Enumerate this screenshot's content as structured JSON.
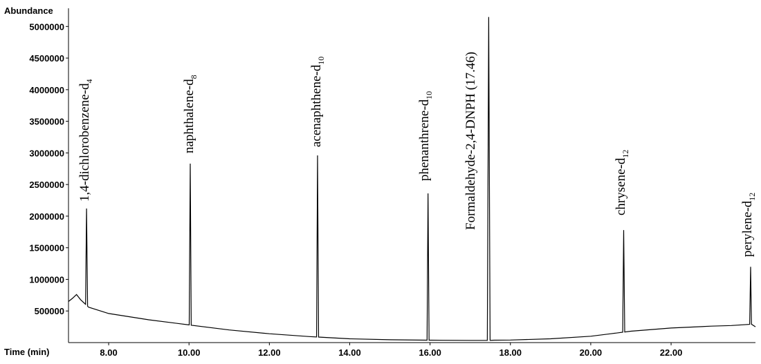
{
  "chart_data": {
    "type": "line",
    "ylabel": "Abundance",
    "xlabel": "Time (min)",
    "xlim": [
      7.0,
      24.1
    ],
    "ylim": [
      0,
      5200000
    ],
    "x_ticks": [
      {
        "value": 8,
        "label": "8.00"
      },
      {
        "value": 10,
        "label": "10.00"
      },
      {
        "value": 12,
        "label": "12.00"
      },
      {
        "value": 14,
        "label": "14.00"
      },
      {
        "value": 16,
        "label": "16.00"
      },
      {
        "value": 18,
        "label": "18.00"
      },
      {
        "value": 20,
        "label": "20.00"
      },
      {
        "value": 22,
        "label": "22.00"
      }
    ],
    "y_ticks": [
      {
        "value": 500000,
        "label": "500000"
      },
      {
        "value": 1000000,
        "label": "1000000"
      },
      {
        "value": 1500000,
        "label": "1500000"
      },
      {
        "value": 2000000,
        "label": "2000000"
      },
      {
        "value": 2500000,
        "label": "2500000"
      },
      {
        "value": 3000000,
        "label": "3000000"
      },
      {
        "value": 3500000,
        "label": "3500000"
      },
      {
        "value": 4000000,
        "label": "4000000"
      },
      {
        "value": 4500000,
        "label": "4500000"
      },
      {
        "value": 5000000,
        "label": "5000000"
      }
    ],
    "baseline": [
      [
        7.0,
        650000
      ],
      [
        7.1,
        700000
      ],
      [
        7.2,
        760000
      ],
      [
        7.3,
        680000
      ],
      [
        7.5,
        560000
      ],
      [
        8.0,
        460000
      ],
      [
        9.0,
        360000
      ],
      [
        10.0,
        280000
      ],
      [
        11.0,
        200000
      ],
      [
        12.0,
        140000
      ],
      [
        13.0,
        95000
      ],
      [
        14.0,
        60000
      ],
      [
        15.0,
        45000
      ],
      [
        16.0,
        38000
      ],
      [
        17.0,
        35000
      ],
      [
        17.4,
        35000
      ],
      [
        17.6,
        38000
      ],
      [
        18.0,
        40000
      ],
      [
        19.0,
        60000
      ],
      [
        20.0,
        100000
      ],
      [
        20.5,
        140000
      ],
      [
        21.0,
        180000
      ],
      [
        22.0,
        230000
      ],
      [
        23.0,
        260000
      ],
      [
        23.5,
        270000
      ],
      [
        24.0,
        290000
      ],
      [
        24.1,
        250000
      ]
    ],
    "peaks": [
      {
        "name": "1,4-dichlorobenzene-d",
        "subscript": "4",
        "rt": 7.45,
        "height": 2120000
      },
      {
        "name": "naphthalene-d",
        "subscript": "8",
        "rt": 10.03,
        "height": 2830000
      },
      {
        "name": "acenaphthene-d",
        "subscript": "10",
        "rt": 13.2,
        "height": 2960000
      },
      {
        "name": "phenanthrene-d",
        "subscript": "10",
        "rt": 15.95,
        "height": 2360000
      },
      {
        "name": "Formaldehyde-2,4-DNPH (17.46)",
        "subscript": "",
        "rt": 17.46,
        "height": 5150000
      },
      {
        "name": "chrysene-d",
        "subscript": "12",
        "rt": 20.82,
        "height": 1780000
      },
      {
        "name": "perylene-d",
        "subscript": "12",
        "rt": 23.98,
        "height": 1200000
      }
    ]
  }
}
